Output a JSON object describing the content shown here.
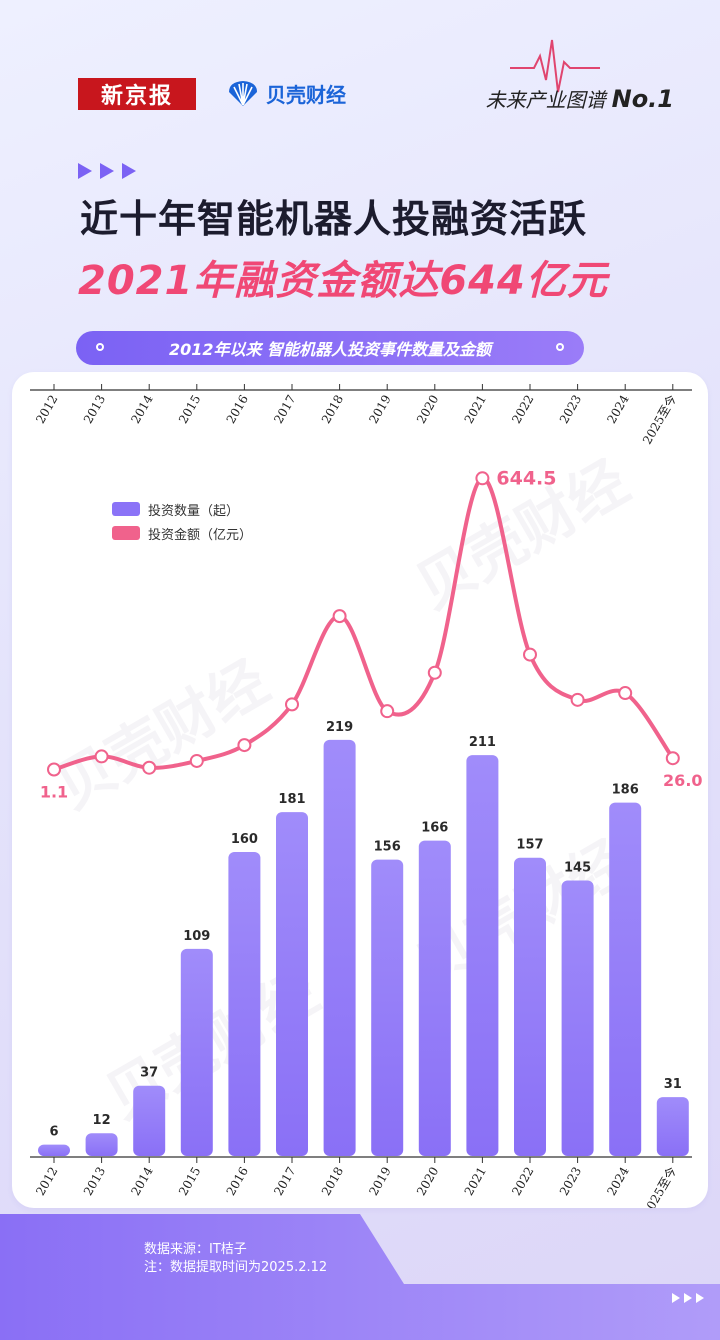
{
  "header": {
    "logo_left": "新京报",
    "logo_right": "贝壳财经",
    "series_name": "未来产业图谱",
    "series_no": "No.1"
  },
  "title": {
    "line1": "近十年智能机器人投融资活跃",
    "line2": "2021年融资金额达644亿元"
  },
  "subtitle": "2012年以来 智能机器人投资事件数量及金额",
  "footer": {
    "source": "数据来源：IT桔子",
    "note": "注：数据提取时间为2025.2.12"
  },
  "watermark": "贝壳财经",
  "colors": {
    "bar": "#8b73f7",
    "bar_light": "#a08cfa",
    "line": "#f0628c",
    "accent_purple": "#7b62f4",
    "title_pink": "#f04875"
  },
  "chart_data": {
    "type": "bar",
    "categories": [
      "2012",
      "2013",
      "2014",
      "2015",
      "2016",
      "2017",
      "2018",
      "2019",
      "2020",
      "2021",
      "2022",
      "2023",
      "2024",
      "2025至今"
    ],
    "series": [
      {
        "name": "投资数量（起）",
        "kind": "bar",
        "values": [
          6,
          12,
          37,
          109,
          160,
          181,
          219,
          156,
          166,
          211,
          157,
          145,
          186,
          31
        ],
        "labeled": [
          true,
          true,
          true,
          true,
          true,
          true,
          true,
          true,
          true,
          true,
          true,
          true,
          true,
          true
        ]
      },
      {
        "name": "投资金额（亿元）",
        "kind": "line",
        "values": [
          1.1,
          30,
          5,
          20,
          55,
          145,
          340,
          130,
          215,
          644.5,
          255,
          155,
          170,
          26.0
        ],
        "labeled": [
          true,
          false,
          false,
          false,
          false,
          false,
          false,
          false,
          false,
          true,
          false,
          false,
          false,
          true
        ],
        "labels": [
          "1.1",
          "",
          "",
          "",
          "",
          "",
          "",
          "",
          "",
          "644.5",
          "",
          "",
          "",
          "26.0"
        ]
      }
    ],
    "legend": [
      "投资数量（起）",
      "投资金额（亿元）"
    ],
    "legend_position": "top-left",
    "xlabel": "",
    "ylabel": "",
    "grid": false
  }
}
